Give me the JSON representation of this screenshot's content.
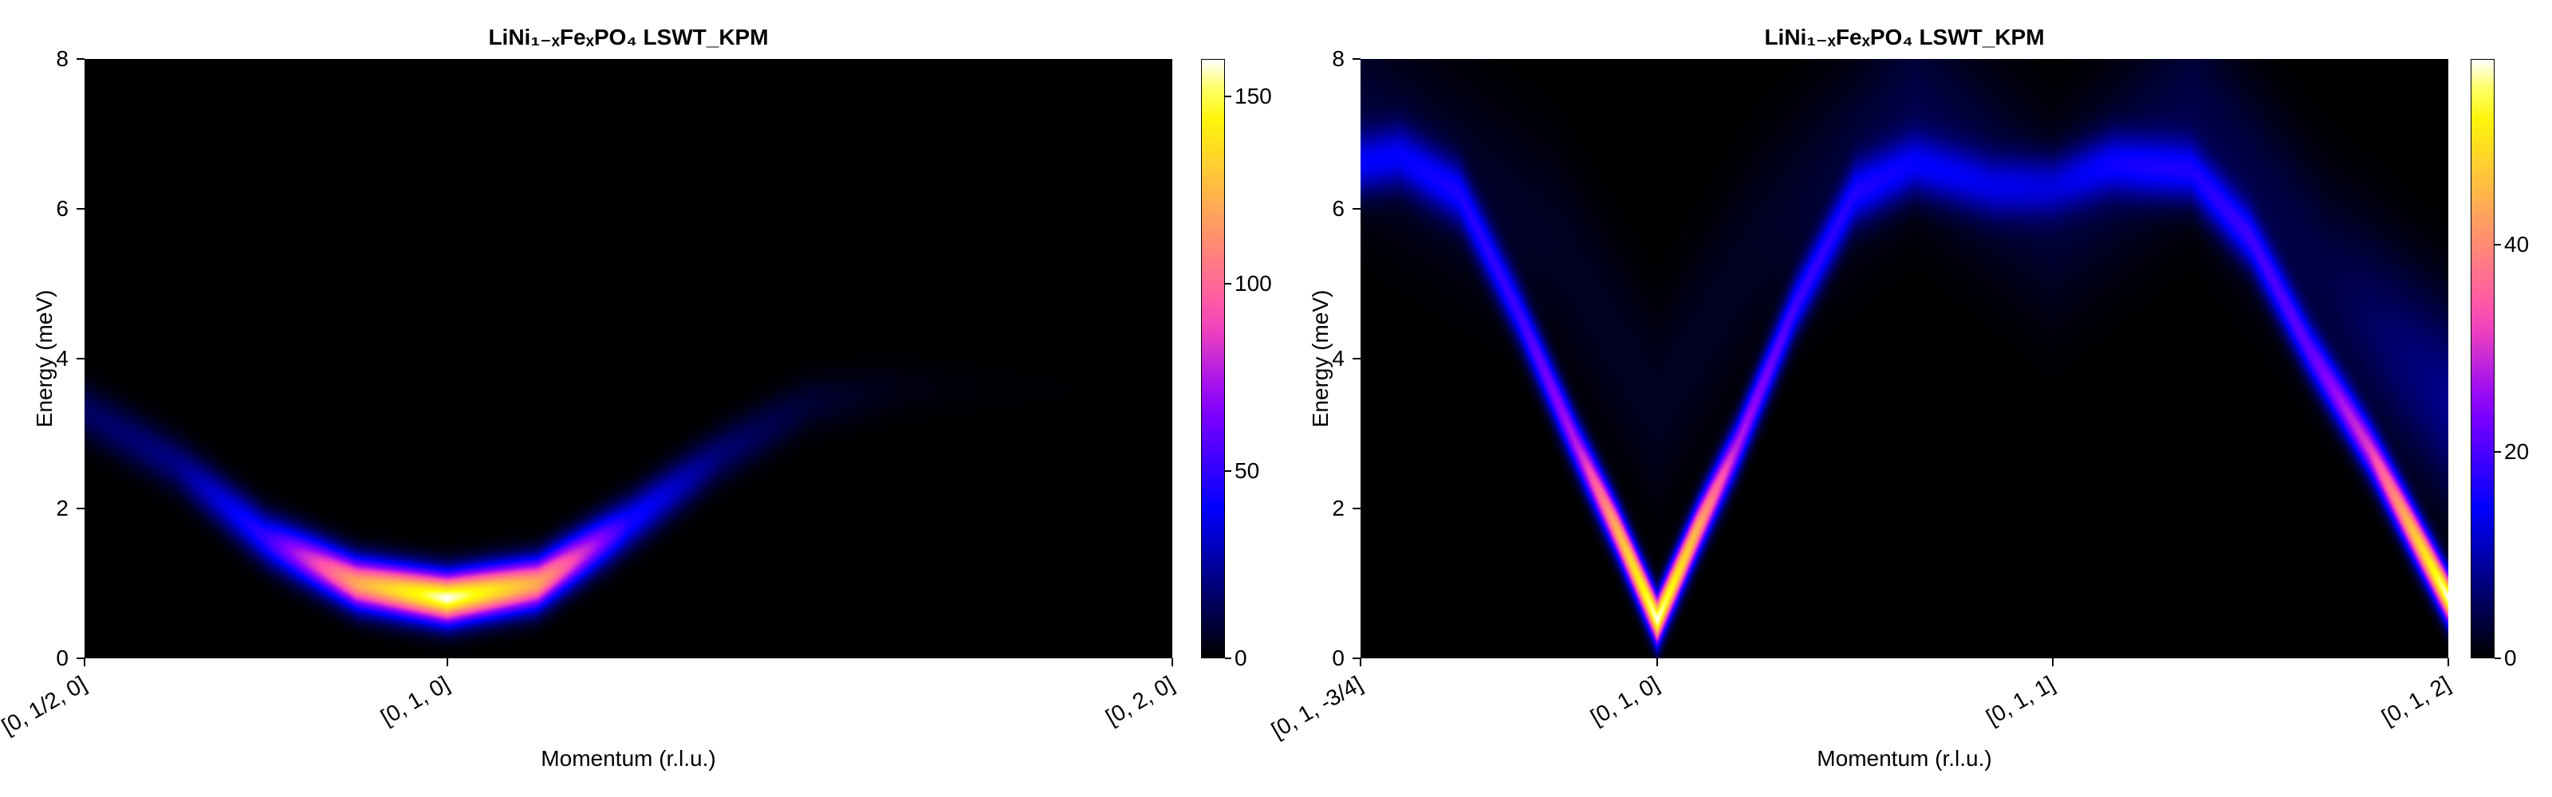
{
  "chart_data": [
    {
      "type": "heatmap",
      "title": "LiNi₁₋ₓFeₓPO₄ LSWT_KPM",
      "xlabel": "Momentum (r.l.u.)",
      "ylabel": "Energy (meV)",
      "ylim": [
        0,
        8
      ],
      "yticks": [
        "0",
        "2",
        "4",
        "6",
        "8"
      ],
      "x_ticks": [
        "[0, 1/2, 0]",
        "[0, 1, 0]",
        "[0, 2, 0]"
      ],
      "x_tick_positions": [
        0,
        1,
        3
      ],
      "x_range": [
        0,
        3
      ],
      "colormap": "gnuplot2",
      "colorbar": {
        "range": [
          0,
          160
        ],
        "ticks": [
          "0",
          "50",
          "100",
          "150"
        ],
        "tick_values": [
          0,
          50,
          100,
          150
        ]
      },
      "dispersion": [
        {
          "x": 0.0,
          "energy": 3.3,
          "intensity": 15
        },
        {
          "x": 0.25,
          "energy": 2.6,
          "intensity": 20
        },
        {
          "x": 0.5,
          "energy": 1.6,
          "intensity": 50
        },
        {
          "x": 0.75,
          "energy": 1.0,
          "intensity": 120
        },
        {
          "x": 1.0,
          "energy": 0.8,
          "intensity": 160
        },
        {
          "x": 1.25,
          "energy": 1.0,
          "intensity": 120
        },
        {
          "x": 1.5,
          "energy": 1.8,
          "intensity": 45
        },
        {
          "x": 1.75,
          "energy": 2.7,
          "intensity": 18
        },
        {
          "x": 2.0,
          "energy": 3.4,
          "intensity": 8
        },
        {
          "x": 2.25,
          "energy": 3.6,
          "intensity": 3
        },
        {
          "x": 2.5,
          "energy": 3.6,
          "intensity": 1
        },
        {
          "x": 3.0,
          "energy": 3.6,
          "intensity": 0
        }
      ]
    },
    {
      "type": "heatmap",
      "title": "LiNi₁₋ₓFeₓPO₄ LSWT_KPM",
      "xlabel": "Momentum (r.l.u.)",
      "ylabel": "Energy (meV)",
      "ylim": [
        0,
        8
      ],
      "yticks": [
        "0",
        "2",
        "4",
        "6",
        "8"
      ],
      "x_ticks": [
        "[0, 1, -3/4]",
        "[0, 1, 0]",
        "[0, 1, 1]",
        "[0, 1, 2]"
      ],
      "x_tick_positions": [
        0,
        0.75,
        1.75,
        2.75
      ],
      "x_range": [
        0,
        2.75
      ],
      "colormap": "gnuplot2",
      "colorbar": {
        "range": [
          0,
          58
        ],
        "ticks": [
          "0",
          "20",
          "40"
        ],
        "tick_values": [
          0,
          20,
          40
        ]
      },
      "dispersion": [
        {
          "x": 0.0,
          "energy": 6.6,
          "intensity": 12
        },
        {
          "x": 0.1,
          "energy": 6.7,
          "intensity": 12
        },
        {
          "x": 0.25,
          "energy": 6.2,
          "intensity": 14
        },
        {
          "x": 0.4,
          "energy": 4.6,
          "intensity": 18
        },
        {
          "x": 0.55,
          "energy": 2.8,
          "intensity": 28
        },
        {
          "x": 0.65,
          "energy": 1.7,
          "intensity": 45
        },
        {
          "x": 0.75,
          "energy": 0.5,
          "intensity": 58
        },
        {
          "x": 0.85,
          "energy": 1.7,
          "intensity": 45
        },
        {
          "x": 0.95,
          "energy": 2.8,
          "intensity": 28
        },
        {
          "x": 1.1,
          "energy": 4.7,
          "intensity": 18
        },
        {
          "x": 1.25,
          "energy": 6.2,
          "intensity": 14
        },
        {
          "x": 1.4,
          "energy": 6.6,
          "intensity": 12
        },
        {
          "x": 1.6,
          "energy": 6.3,
          "intensity": 10
        },
        {
          "x": 1.75,
          "energy": 6.3,
          "intensity": 10
        },
        {
          "x": 1.9,
          "energy": 6.6,
          "intensity": 12
        },
        {
          "x": 2.1,
          "energy": 6.5,
          "intensity": 14
        },
        {
          "x": 2.25,
          "energy": 5.6,
          "intensity": 16
        },
        {
          "x": 2.4,
          "energy": 4.1,
          "intensity": 20
        },
        {
          "x": 2.55,
          "energy": 2.8,
          "intensity": 30
        },
        {
          "x": 2.65,
          "energy": 1.8,
          "intensity": 45
        },
        {
          "x": 2.75,
          "energy": 0.8,
          "intensity": 58
        }
      ],
      "secondary_band": [
        {
          "x": 0.0,
          "energy": 7.3,
          "intensity": 3
        },
        {
          "x": 0.5,
          "energy": 5.5,
          "intensity": 2
        },
        {
          "x": 0.75,
          "energy": 3.3,
          "intensity": 2
        },
        {
          "x": 1.0,
          "energy": 5.5,
          "intensity": 2
        },
        {
          "x": 1.4,
          "energy": 7.4,
          "intensity": 4
        },
        {
          "x": 1.75,
          "energy": 5.8,
          "intensity": 3
        },
        {
          "x": 2.1,
          "energy": 7.4,
          "intensity": 4
        },
        {
          "x": 2.45,
          "energy": 5.0,
          "intensity": 4
        },
        {
          "x": 2.75,
          "energy": 3.4,
          "intensity": 8
        }
      ]
    }
  ]
}
